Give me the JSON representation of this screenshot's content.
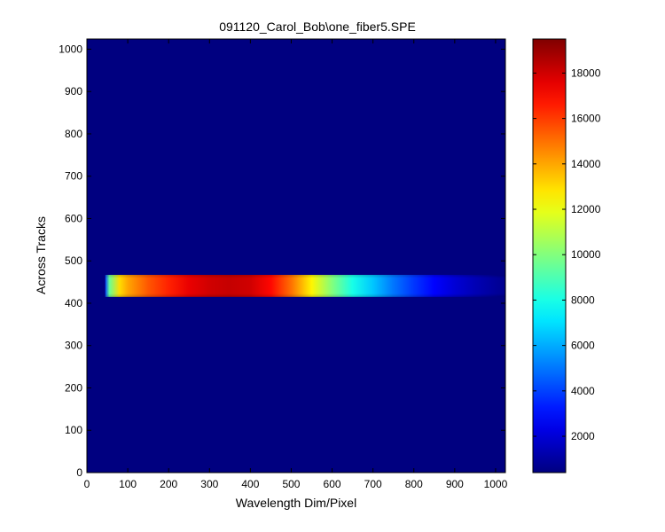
{
  "chart_data": {
    "type": "heatmap",
    "title": "091120_Carol_Bob\\one_fiber5.SPE",
    "xlabel": "Wavelength Dim/Pixel",
    "ylabel": "Across Tracks",
    "xlim": [
      0,
      1024
    ],
    "ylim": [
      0,
      1024
    ],
    "x_ticks": [
      0,
      100,
      200,
      300,
      400,
      500,
      600,
      700,
      800,
      900,
      1000
    ],
    "y_ticks": [
      0,
      100,
      200,
      300,
      400,
      500,
      600,
      700,
      800,
      900,
      1000
    ],
    "colormap": "jet",
    "background_value": 400,
    "band": {
      "track_start": 415,
      "track_end": 467,
      "x_start": 45,
      "x_end": 1024
    },
    "intensity_profile": {
      "x": [
        45,
        55,
        80,
        100,
        150,
        200,
        250,
        300,
        350,
        400,
        450,
        500,
        550,
        600,
        650,
        700,
        750,
        800,
        850,
        900,
        950,
        1000,
        1024
      ],
      "value": [
        4000,
        9500,
        13000,
        14000,
        15500,
        16500,
        17500,
        18000,
        18200,
        18000,
        17000,
        15000,
        12500,
        10000,
        8000,
        6500,
        5000,
        3800,
        2800,
        2000,
        1400,
        900,
        700
      ]
    },
    "colorbar": {
      "min": 400,
      "max": 19500,
      "ticks": [
        2000,
        4000,
        6000,
        8000,
        10000,
        12000,
        14000,
        16000,
        18000
      ]
    },
    "colors": {
      "background": "#00008f",
      "axes_frame": "#000000"
    }
  }
}
